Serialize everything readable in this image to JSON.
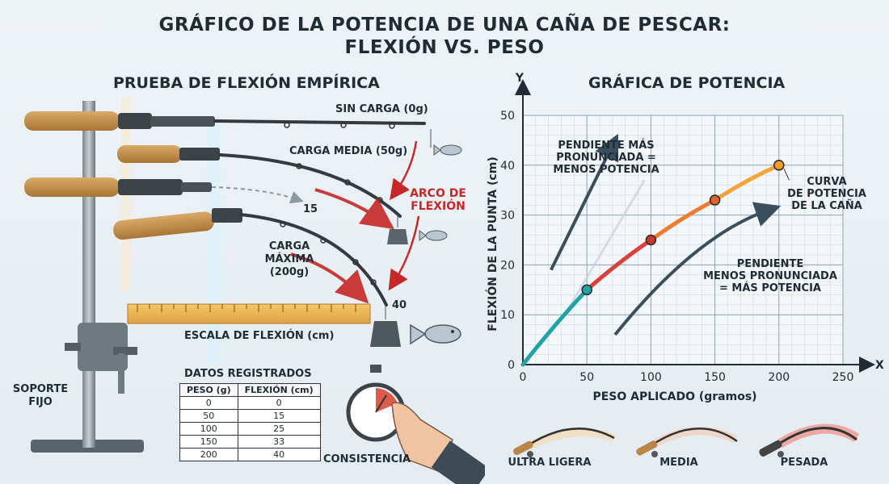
{
  "title_line1": "GRÁFICO DE LA POTENCIA DE UNA CAÑA DE PESCAR:",
  "title_line2": "FLEXIÓN VS. PESO",
  "left": {
    "heading": "PRUEBA DE FLEXIÓN EMPÍRICA",
    "label_no_load": "SIN CARGA (0g)",
    "label_medium_load": "CARGA MEDIA (50g)",
    "label_max_load_1": "CARGA",
    "label_max_load_2": "MÁXIMA",
    "label_max_load_3": "(200g)",
    "arc_label_1": "ARCO DE",
    "arc_label_2": "FLEXIÓN",
    "mark_15": "15",
    "mark_40": "40",
    "scale_label": "ESCALA DE FLEXIÓN (cm)",
    "support_label_1": "SOPORTE",
    "support_label_2": "FIJO",
    "consistency_label": "CONSISTENCIA"
  },
  "table": {
    "title": "DATOS REGISTRADOS",
    "headers": [
      "PESO (g)",
      "FLEXIÓN (cm)"
    ],
    "rows": [
      [
        "0",
        "0"
      ],
      [
        "50",
        "15"
      ],
      [
        "100",
        "25"
      ],
      [
        "150",
        "33"
      ],
      [
        "200",
        "40"
      ]
    ]
  },
  "right": {
    "heading": "GRÁFICA DE POTENCIA",
    "steep_note_1": "PENDIENTE MÁS",
    "steep_note_2": "PRONUNCIADA =",
    "steep_note_3": "MENOS POTENCIA",
    "shallow_note_1": "PENDIENTE",
    "shallow_note_2": "MENOS PRONUNCIADA",
    "shallow_note_3": "= MÁS POTENCIA",
    "curve_note_1": "CURVA",
    "curve_note_2": "DE POTENCIA",
    "curve_note_3": "DE LA CAÑA",
    "rod_types": [
      "ULTRA LIGERA",
      "MEDIA",
      "PESADA"
    ]
  },
  "chart_data": {
    "type": "line",
    "xlabel": "PESO APLICADO (gramos)",
    "ylabel": "FLEXIÓN DE LA PUNTA (cm)",
    "x_axis_letter": "X",
    "y_axis_letter": "Y",
    "xlim": [
      0,
      250
    ],
    "ylim": [
      0,
      50
    ],
    "x_ticks": [
      0,
      50,
      100,
      150,
      200,
      250
    ],
    "y_ticks": [
      0,
      10,
      20,
      30,
      40,
      50
    ],
    "grid": true,
    "x": [
      0,
      50,
      100,
      150,
      200
    ],
    "y": [
      0,
      15,
      25,
      33,
      40
    ],
    "marked_points": [
      [
        50,
        15
      ],
      [
        100,
        25
      ],
      [
        150,
        33
      ],
      [
        200,
        40
      ]
    ],
    "colors": {
      "segment_colors": [
        "#1fa3a6",
        "#d9413b",
        "#ee7b2e",
        "#f3a53b"
      ],
      "point_colors": [
        "#1fa3a6",
        "#c8372f",
        "#e0622c",
        "#f29a2a"
      ],
      "arrow": "#3a4f5e",
      "grid": "#aebfcc"
    }
  }
}
